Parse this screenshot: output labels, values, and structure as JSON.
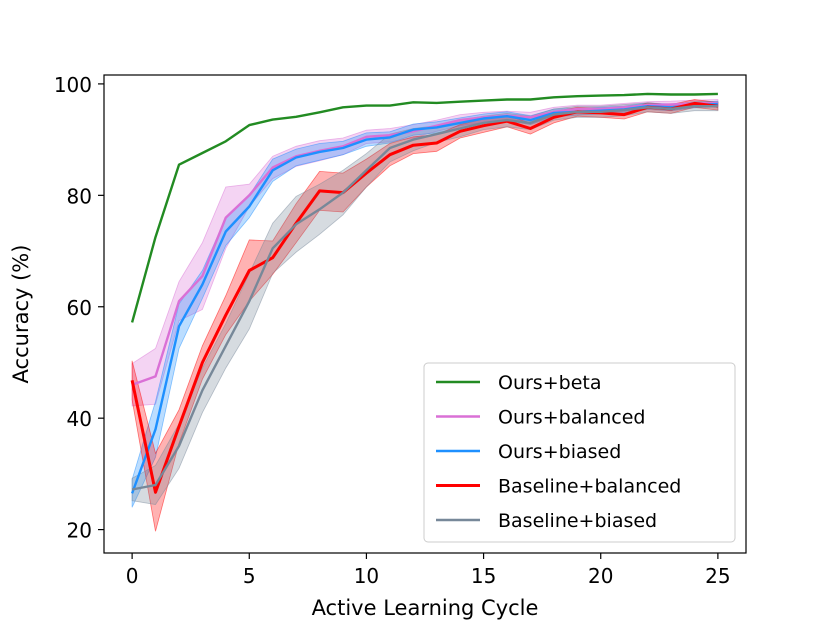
{
  "chart_data": {
    "type": "line",
    "xlabel": "Active Learning Cycle",
    "ylabel": "Accuracy (%)",
    "xlim": [
      -1.2,
      26.2
    ],
    "ylim": [
      15.8,
      101.6
    ],
    "xticks": [
      0,
      5,
      10,
      15,
      20,
      25
    ],
    "yticks": [
      20,
      40,
      60,
      80,
      100
    ],
    "x_tick_labels": [
      "0",
      "5",
      "10",
      "15",
      "20",
      "25"
    ],
    "y_tick_labels": [
      "20",
      "40",
      "60",
      "80",
      "100"
    ],
    "grid": false,
    "legend_position": "lower-right",
    "x": [
      0,
      1,
      2,
      3,
      4,
      5,
      6,
      7,
      8,
      9,
      10,
      11,
      12,
      13,
      14,
      15,
      16,
      17,
      18,
      19,
      20,
      21,
      22,
      23,
      24,
      25
    ],
    "series": [
      {
        "name": "Ours+beta",
        "color": "#228B22",
        "values": [
          57.2,
          72.5,
          85.5,
          87.6,
          89.7,
          92.6,
          93.6,
          94.1,
          94.9,
          95.8,
          96.1,
          96.1,
          96.7,
          96.6,
          96.8,
          97.0,
          97.2,
          97.2,
          97.6,
          97.8,
          97.9,
          98.0,
          98.2,
          98.1,
          98.1,
          98.2
        ],
        "band": null
      },
      {
        "name": "Ours+balanced",
        "color": "#DA70D6",
        "values": [
          46.0,
          47.5,
          61.0,
          65.5,
          76.0,
          80.0,
          85.0,
          87.0,
          88.0,
          88.8,
          90.5,
          90.8,
          91.5,
          92.5,
          93.5,
          94.0,
          94.3,
          94.0,
          95.0,
          95.5,
          95.5,
          95.8,
          96.2,
          96.3,
          96.5,
          96.6
        ],
        "band": [
          3.8,
          5.0,
          3.5,
          6.0,
          5.5,
          2.0,
          2.0,
          1.8,
          1.8,
          1.5,
          1.2,
          1.2,
          1.2,
          1.0,
          1.0,
          0.9,
          0.8,
          0.9,
          0.8,
          0.7,
          0.7,
          0.7,
          0.6,
          0.6,
          0.6,
          0.6
        ]
      },
      {
        "name": "Ours+biased",
        "color": "#1E90FF",
        "values": [
          26.5,
          38.0,
          56.5,
          64.0,
          73.5,
          78.0,
          84.5,
          86.8,
          87.8,
          88.5,
          90.0,
          90.4,
          91.8,
          92.2,
          93.0,
          93.8,
          94.2,
          93.5,
          94.8,
          95.0,
          95.2,
          95.4,
          96.0,
          95.8,
          96.2,
          96.4
        ],
        "band": [
          2.5,
          5.0,
          4.0,
          2.5,
          2.5,
          2.0,
          2.0,
          1.5,
          1.5,
          1.2,
          1.2,
          1.0,
          1.0,
          1.0,
          0.9,
          0.8,
          0.8,
          0.8,
          0.7,
          0.6,
          0.6,
          0.6,
          0.6,
          0.6,
          0.5,
          0.5
        ]
      },
      {
        "name": "Baseline+balanced",
        "color": "#FF0000",
        "values": [
          46.8,
          26.7,
          38.5,
          50.0,
          58.5,
          66.5,
          68.8,
          75.0,
          80.8,
          80.5,
          84.0,
          87.3,
          89.0,
          89.4,
          91.5,
          92.5,
          93.3,
          92.0,
          94.0,
          95.0,
          94.8,
          94.5,
          95.8,
          95.5,
          96.5,
          96.0
        ],
        "band": [
          3.5,
          7.0,
          3.0,
          3.0,
          3.5,
          5.5,
          3.0,
          3.5,
          3.5,
          3.5,
          2.5,
          2.0,
          1.5,
          1.5,
          1.2,
          1.2,
          1.0,
          1.0,
          1.0,
          0.8,
          0.8,
          0.8,
          0.8,
          0.8,
          0.7,
          0.7
        ]
      },
      {
        "name": "Baseline+biased",
        "color": "#778899",
        "values": [
          27.2,
          28.0,
          35.0,
          45.0,
          53.0,
          61.0,
          70.5,
          74.8,
          77.5,
          80.5,
          84.5,
          88.5,
          90.0,
          91.0,
          92.0,
          93.0,
          93.5,
          93.0,
          94.5,
          95.0,
          95.0,
          95.3,
          95.8,
          95.5,
          96.0,
          96.0
        ],
        "band": [
          2.0,
          3.5,
          4.0,
          4.0,
          4.0,
          5.0,
          4.5,
          5.0,
          4.5,
          4.0,
          3.0,
          2.5,
          2.0,
          1.5,
          1.5,
          1.2,
          1.2,
          1.2,
          1.0,
          1.0,
          1.0,
          1.0,
          0.8,
          0.8,
          0.8,
          0.8
        ]
      }
    ]
  }
}
